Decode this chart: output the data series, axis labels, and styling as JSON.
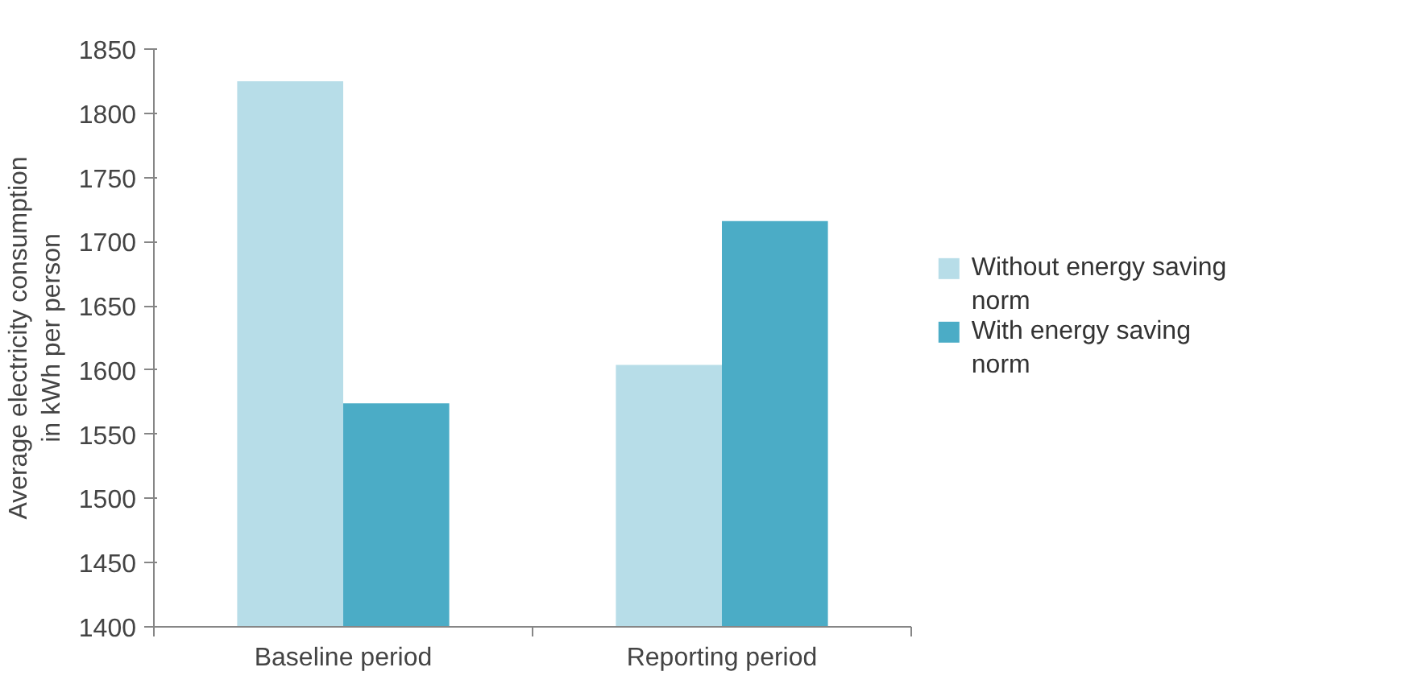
{
  "chart_data": {
    "type": "bar",
    "ylabel": "Average electricity consumption in kWh per person",
    "categories": [
      "Baseline period",
      "Reporting period"
    ],
    "series": [
      {
        "name": "Without energy saving norm",
        "color": "#b7dde8",
        "values": [
          1825,
          1604
        ]
      },
      {
        "name": "With energy saving norm",
        "color": "#4bacc6",
        "values": [
          1574,
          1716
        ]
      }
    ],
    "ylim": [
      1400,
      1850
    ],
    "yticks": [
      1400,
      1450,
      1500,
      1550,
      1600,
      1650,
      1700,
      1750,
      1800,
      1850
    ],
    "grid": false,
    "legend": "right"
  }
}
